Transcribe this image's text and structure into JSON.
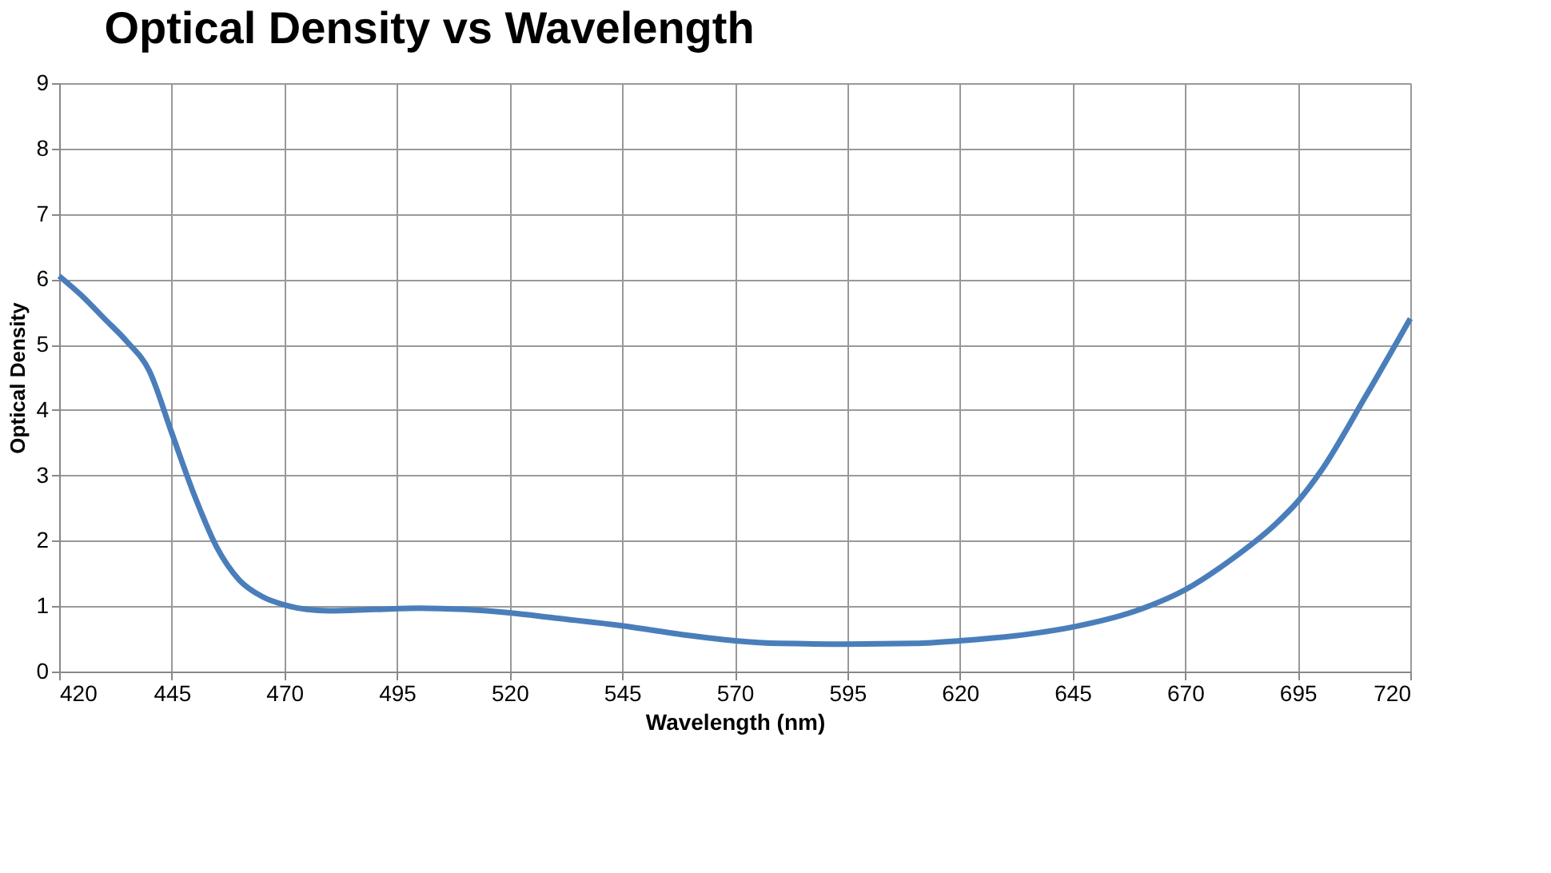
{
  "chart_data": {
    "type": "line",
    "title": "Optical Density vs Wavelength",
    "xlabel": "Wavelength (nm)",
    "ylabel": "Optical Density",
    "x": [
      420,
      425,
      430,
      435,
      440,
      445,
      450,
      455,
      460,
      465,
      470,
      475,
      480,
      490,
      500,
      510,
      520,
      530,
      545,
      560,
      570,
      580,
      595,
      610,
      620,
      635,
      645,
      660,
      670,
      680,
      690,
      695,
      700,
      710,
      720
    ],
    "series": [
      {
        "color": "#4a7ebb",
        "values": [
          6.05,
          5.75,
          5.4,
          5.05,
          4.6,
          3.65,
          2.7,
          1.9,
          1.4,
          1.15,
          1.02,
          0.95,
          0.93,
          0.95,
          0.97,
          0.95,
          0.9,
          0.82,
          0.7,
          0.55,
          0.47,
          0.43,
          0.42,
          0.43,
          0.47,
          0.57,
          0.68,
          0.95,
          1.25,
          1.7,
          2.25,
          2.6,
          3.05,
          4.2,
          5.4
        ]
      }
    ],
    "xlim": [
      420,
      720
    ],
    "xticks": [
      420,
      445,
      470,
      495,
      520,
      545,
      570,
      595,
      620,
      645,
      670,
      695,
      720
    ],
    "ylim": [
      0,
      9
    ],
    "yticks": [
      0,
      1,
      2,
      3,
      4,
      5,
      6,
      7,
      8,
      9
    ],
    "grid": true,
    "legend": false,
    "marker": "none",
    "line_style": "solid"
  }
}
